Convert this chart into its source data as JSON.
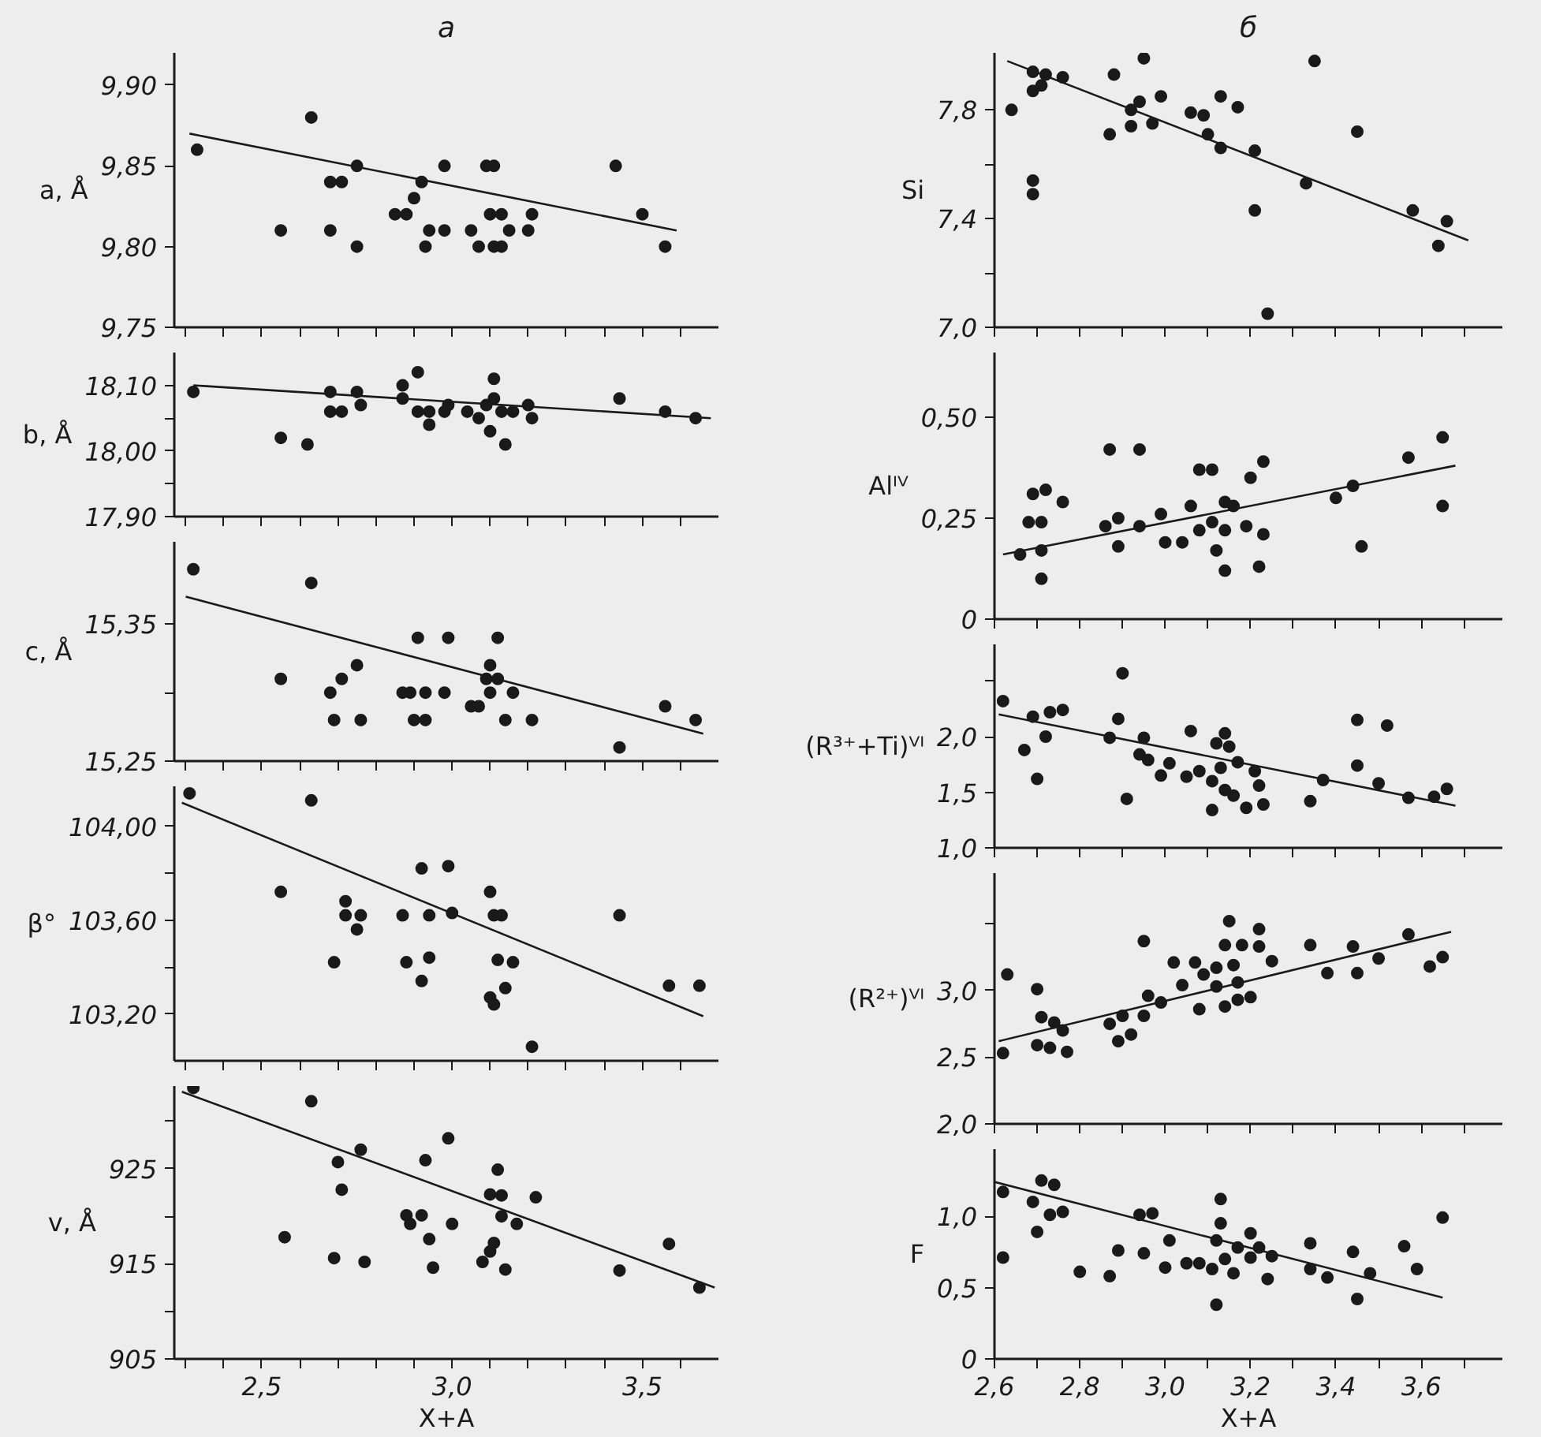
{
  "chart_data": [
    {
      "type": "scatter",
      "title": "а",
      "ylabel": "a, Å",
      "marker": "circle",
      "grid": false,
      "tick_labels": "y",
      "xlim": [
        2.27,
        3.7
      ],
      "ylim": [
        9.75,
        9.92
      ],
      "xticks": [
        {
          "value": 2.3,
          "label": null
        },
        {
          "value": 2.4,
          "label": null
        },
        {
          "value": 2.5,
          "label": null
        },
        {
          "value": 2.6,
          "label": null
        },
        {
          "value": 2.7,
          "label": null
        },
        {
          "value": 2.8,
          "label": null
        },
        {
          "value": 2.9,
          "label": null
        },
        {
          "value": 3.0,
          "label": null
        },
        {
          "value": 3.1,
          "label": null
        },
        {
          "value": 3.2,
          "label": null
        },
        {
          "value": 3.3,
          "label": null
        },
        {
          "value": 3.4,
          "label": null
        },
        {
          "value": 3.5,
          "label": null
        },
        {
          "value": 3.6,
          "label": null
        }
      ],
      "yticks": [
        {
          "value": 9.75,
          "label": "9,75"
        },
        {
          "value": 9.8,
          "label": "9,80"
        },
        {
          "value": 9.85,
          "label": "9,85"
        },
        {
          "value": 9.9,
          "label": "9,90"
        }
      ],
      "series": [
        {
          "type": "scatter",
          "color": "#1a1a1a",
          "x": [
            2.33,
            2.55,
            2.63,
            2.68,
            2.71,
            2.68,
            2.75,
            2.75,
            2.85,
            2.88,
            2.9,
            2.92,
            2.93,
            2.94,
            2.98,
            2.98,
            3.05,
            3.07,
            3.09,
            3.11,
            3.1,
            3.13,
            3.11,
            3.13,
            3.15,
            3.2,
            3.21,
            3.43,
            3.5,
            3.56
          ],
          "values": [
            9.86,
            9.81,
            9.88,
            9.84,
            9.84,
            9.81,
            9.85,
            9.8,
            9.82,
            9.82,
            9.83,
            9.84,
            9.8,
            9.81,
            9.85,
            9.81,
            9.81,
            9.8,
            9.85,
            9.85,
            9.82,
            9.82,
            9.8,
            9.8,
            9.81,
            9.81,
            9.82,
            9.85,
            9.82,
            9.8
          ]
        },
        {
          "type": "line",
          "marker": "none",
          "color": "#1a1a1a",
          "x": [
            2.31,
            3.59
          ],
          "values": [
            9.87,
            9.81
          ]
        }
      ]
    },
    {
      "type": "scatter",
      "ylabel": "b, Å",
      "marker": "circle",
      "grid": false,
      "tick_labels": "y",
      "xlim": [
        2.27,
        3.7
      ],
      "ylim": [
        17.9,
        18.15
      ],
      "xticks": [
        {
          "value": 2.3,
          "label": null
        },
        {
          "value": 2.4,
          "label": null
        },
        {
          "value": 2.5,
          "label": null
        },
        {
          "value": 2.6,
          "label": null
        },
        {
          "value": 2.7,
          "label": null
        },
        {
          "value": 2.8,
          "label": null
        },
        {
          "value": 2.9,
          "label": null
        },
        {
          "value": 3.0,
          "label": null
        },
        {
          "value": 3.1,
          "label": null
        },
        {
          "value": 3.2,
          "label": null
        },
        {
          "value": 3.3,
          "label": null
        },
        {
          "value": 3.4,
          "label": null
        },
        {
          "value": 3.5,
          "label": null
        },
        {
          "value": 3.6,
          "label": null
        }
      ],
      "yticks": [
        {
          "value": 17.9,
          "label": "17,90"
        },
        {
          "value": 17.95,
          "label": null
        },
        {
          "value": 18.0,
          "label": "18,00"
        },
        {
          "value": 18.05,
          "label": null
        },
        {
          "value": 18.1,
          "label": "18,10"
        }
      ],
      "series": [
        {
          "type": "scatter",
          "color": "#1a1a1a",
          "x": [
            2.32,
            2.68,
            2.75,
            2.76,
            2.68,
            2.71,
            2.87,
            2.87,
            2.91,
            2.91,
            2.94,
            2.98,
            2.99,
            3.04,
            3.07,
            3.09,
            3.11,
            3.11,
            3.13,
            3.16,
            3.2,
            3.21,
            3.44,
            3.56,
            3.64,
            2.94,
            2.55,
            2.62,
            3.1,
            3.14
          ],
          "values": [
            18.09,
            18.09,
            18.09,
            18.07,
            18.06,
            18.06,
            18.1,
            18.08,
            18.12,
            18.06,
            18.06,
            18.06,
            18.07,
            18.06,
            18.05,
            18.07,
            18.11,
            18.08,
            18.06,
            18.06,
            18.07,
            18.05,
            18.08,
            18.06,
            18.05,
            18.04,
            18.02,
            18.01,
            18.03,
            18.01
          ]
        },
        {
          "type": "line",
          "marker": "none",
          "color": "#1a1a1a",
          "x": [
            2.32,
            3.68
          ],
          "values": [
            18.1,
            18.05
          ]
        }
      ]
    },
    {
      "type": "scatter",
      "ylabel": "c, Å",
      "marker": "circle",
      "grid": false,
      "tick_labels": "y",
      "xlim": [
        2.27,
        3.7
      ],
      "ylim": [
        15.25,
        15.41
      ],
      "xticks": [
        {
          "value": 2.3,
          "label": null
        },
        {
          "value": 2.4,
          "label": null
        },
        {
          "value": 2.5,
          "label": null
        },
        {
          "value": 2.6,
          "label": null
        },
        {
          "value": 2.7,
          "label": null
        },
        {
          "value": 2.8,
          "label": null
        },
        {
          "value": 2.9,
          "label": null
        },
        {
          "value": 3.0,
          "label": null
        },
        {
          "value": 3.1,
          "label": null
        },
        {
          "value": 3.2,
          "label": null
        },
        {
          "value": 3.3,
          "label": null
        },
        {
          "value": 3.4,
          "label": null
        },
        {
          "value": 3.5,
          "label": null
        },
        {
          "value": 3.6,
          "label": null
        }
      ],
      "yticks": [
        {
          "value": 15.25,
          "label": "15,25"
        },
        {
          "value": 15.3,
          "label": null
        },
        {
          "value": 15.35,
          "label": "15,35"
        }
      ],
      "series": [
        {
          "type": "scatter",
          "color": "#1a1a1a",
          "x": [
            2.32,
            2.63,
            2.55,
            2.68,
            2.69,
            2.71,
            2.75,
            2.76,
            2.87,
            2.89,
            2.9,
            2.91,
            2.93,
            2.93,
            2.98,
            2.99,
            3.05,
            3.07,
            3.1,
            3.09,
            3.1,
            3.12,
            3.12,
            3.14,
            3.16,
            3.21,
            3.44,
            3.56,
            3.64
          ],
          "values": [
            15.39,
            15.38,
            15.31,
            15.3,
            15.28,
            15.31,
            15.32,
            15.28,
            15.3,
            15.3,
            15.28,
            15.34,
            15.3,
            15.28,
            15.3,
            15.34,
            15.29,
            15.29,
            15.32,
            15.31,
            15.3,
            15.31,
            15.34,
            15.28,
            15.3,
            15.28,
            15.26,
            15.29,
            15.28
          ]
        },
        {
          "type": "line",
          "marker": "none",
          "color": "#1a1a1a",
          "x": [
            2.3,
            3.66
          ],
          "values": [
            15.37,
            15.27
          ]
        }
      ]
    },
    {
      "type": "scatter",
      "ylabel": "β°",
      "marker": "circle",
      "grid": false,
      "tick_labels": "y",
      "xlim": [
        2.27,
        3.7
      ],
      "ylim": [
        103.0,
        104.17
      ],
      "xticks": [
        {
          "value": 2.3,
          "label": null
        },
        {
          "value": 2.4,
          "label": null
        },
        {
          "value": 2.5,
          "label": null
        },
        {
          "value": 2.6,
          "label": null
        },
        {
          "value": 2.7,
          "label": null
        },
        {
          "value": 2.8,
          "label": null
        },
        {
          "value": 2.9,
          "label": null
        },
        {
          "value": 3.0,
          "label": null
        },
        {
          "value": 3.1,
          "label": null
        },
        {
          "value": 3.2,
          "label": null
        },
        {
          "value": 3.3,
          "label": null
        },
        {
          "value": 3.4,
          "label": null
        },
        {
          "value": 3.5,
          "label": null
        },
        {
          "value": 3.6,
          "label": null
        }
      ],
      "yticks": [
        {
          "value": 103.2,
          "label": "103,20"
        },
        {
          "value": 103.4,
          "label": null
        },
        {
          "value": 103.6,
          "label": "103,60"
        },
        {
          "value": 103.8,
          "label": null
        },
        {
          "value": 104.0,
          "label": "104,00"
        }
      ],
      "series": [
        {
          "type": "scatter",
          "color": "#1a1a1a",
          "x": [
            2.31,
            2.63,
            2.55,
            2.72,
            2.92,
            2.99,
            3.1,
            2.72,
            2.76,
            2.75,
            2.69,
            2.87,
            2.94,
            3.0,
            3.11,
            3.13,
            3.44,
            2.88,
            2.94,
            2.92,
            3.1,
            3.11,
            3.12,
            3.14,
            3.16,
            3.21,
            3.57,
            3.65
          ],
          "values": [
            104.14,
            104.11,
            103.72,
            103.68,
            103.82,
            103.83,
            103.72,
            103.62,
            103.62,
            103.56,
            103.42,
            103.62,
            103.62,
            103.63,
            103.62,
            103.62,
            103.62,
            103.42,
            103.44,
            103.34,
            103.27,
            103.24,
            103.43,
            103.31,
            103.42,
            103.06,
            103.32,
            103.32
          ]
        },
        {
          "type": "line",
          "marker": "none",
          "color": "#1a1a1a",
          "x": [
            2.29,
            3.66
          ],
          "values": [
            104.1,
            103.19
          ]
        }
      ]
    },
    {
      "type": "scatter",
      "ylabel": "v, Å",
      "xlabel": "X+A",
      "marker": "circle",
      "grid": false,
      "xlim": [
        2.27,
        3.7
      ],
      "ylim": [
        905,
        933.7
      ],
      "xticks": [
        {
          "value": 2.3,
          "label": null
        },
        {
          "value": 2.4,
          "label": null
        },
        {
          "value": 2.5,
          "label": "2,5"
        },
        {
          "value": 2.6,
          "label": null
        },
        {
          "value": 2.7,
          "label": null
        },
        {
          "value": 2.8,
          "label": null
        },
        {
          "value": 2.9,
          "label": null
        },
        {
          "value": 3.0,
          "label": "3,0"
        },
        {
          "value": 3.1,
          "label": null
        },
        {
          "value": 3.2,
          "label": null
        },
        {
          "value": 3.3,
          "label": null
        },
        {
          "value": 3.4,
          "label": null
        },
        {
          "value": 3.5,
          "label": "3,5"
        },
        {
          "value": 3.6,
          "label": null
        }
      ],
      "yticks": [
        905,
        {
          "value": 910,
          "label": null
        },
        915,
        {
          "value": 920,
          "label": null
        },
        925,
        {
          "value": 930,
          "label": null
        }
      ],
      "series": [
        {
          "type": "scatter",
          "color": "#1a1a1a",
          "x": [
            2.32,
            2.63,
            2.7,
            2.76,
            2.71,
            2.56,
            2.69,
            2.77,
            2.88,
            2.89,
            2.92,
            2.93,
            2.94,
            2.95,
            2.99,
            3.0,
            3.08,
            3.1,
            3.11,
            3.1,
            3.13,
            3.12,
            3.13,
            3.17,
            3.14,
            3.22,
            3.44,
            3.57,
            3.65
          ],
          "values": [
            933.5,
            932.1,
            925.7,
            927.0,
            922.8,
            917.8,
            915.6,
            915.2,
            920.1,
            919.2,
            920.1,
            925.9,
            917.6,
            914.6,
            928.2,
            919.2,
            915.2,
            916.3,
            917.2,
            922.3,
            922.2,
            924.9,
            920.0,
            919.2,
            914.4,
            922.0,
            914.3,
            917.1,
            912.5
          ]
        },
        {
          "type": "line",
          "marker": "none",
          "color": "#1a1a1a",
          "x": [
            2.29,
            3.69
          ],
          "values": [
            933.1,
            912.5
          ]
        }
      ]
    },
    {
      "type": "scatter",
      "title": "б",
      "ylabel": "Si",
      "marker": "circle",
      "grid": false,
      "tick_labels": "y",
      "xlim": [
        2.6,
        3.79
      ],
      "ylim": [
        7.0,
        8.01
      ],
      "xticks": [
        {
          "value": 2.6,
          "label": null
        },
        {
          "value": 2.7,
          "label": null
        },
        {
          "value": 2.8,
          "label": null
        },
        {
          "value": 2.9,
          "label": null
        },
        {
          "value": 3.0,
          "label": null
        },
        {
          "value": 3.1,
          "label": null
        },
        {
          "value": 3.2,
          "label": null
        },
        {
          "value": 3.3,
          "label": null
        },
        {
          "value": 3.4,
          "label": null
        },
        {
          "value": 3.5,
          "label": null
        },
        {
          "value": 3.6,
          "label": null
        },
        {
          "value": 3.7,
          "label": null
        }
      ],
      "yticks": [
        {
          "value": 7.0,
          "label": "7,0"
        },
        {
          "value": 7.2,
          "label": null
        },
        {
          "value": 7.4,
          "label": "7,4"
        },
        {
          "value": 7.6,
          "label": null
        },
        {
          "value": 7.8,
          "label": "7,8"
        }
      ],
      "series": [
        {
          "type": "scatter",
          "color": "#1a1a1a",
          "x": [
            2.64,
            2.69,
            2.69,
            2.71,
            2.72,
            2.76,
            2.69,
            2.69,
            2.87,
            2.88,
            2.92,
            2.92,
            2.94,
            2.95,
            2.97,
            2.99,
            3.06,
            3.09,
            3.1,
            3.13,
            3.13,
            3.17,
            3.21,
            3.21,
            3.24,
            3.33,
            3.35,
            3.45,
            3.58,
            3.64,
            3.66
          ],
          "values": [
            7.8,
            7.87,
            7.94,
            7.89,
            7.93,
            7.92,
            7.54,
            7.49,
            7.71,
            7.93,
            7.8,
            7.74,
            7.83,
            7.99,
            7.75,
            7.85,
            7.79,
            7.78,
            7.71,
            7.85,
            7.66,
            7.81,
            7.65,
            7.43,
            7.05,
            7.53,
            7.98,
            7.72,
            7.43,
            7.3,
            7.39
          ]
        },
        {
          "type": "line",
          "marker": "none",
          "color": "#1a1a1a",
          "x": [
            2.63,
            3.71
          ],
          "values": [
            7.98,
            7.32
          ]
        }
      ]
    },
    {
      "type": "scatter",
      "ylabel": "Alᴵⱽ",
      "marker": "circle",
      "grid": false,
      "tick_labels": "y",
      "xlim": [
        2.6,
        3.79
      ],
      "ylim": [
        0,
        0.66
      ],
      "xticks": [
        {
          "value": 2.6,
          "label": null
        },
        {
          "value": 2.7,
          "label": null
        },
        {
          "value": 2.8,
          "label": null
        },
        {
          "value": 2.9,
          "label": null
        },
        {
          "value": 3.0,
          "label": null
        },
        {
          "value": 3.1,
          "label": null
        },
        {
          "value": 3.2,
          "label": null
        },
        {
          "value": 3.3,
          "label": null
        },
        {
          "value": 3.4,
          "label": null
        },
        {
          "value": 3.5,
          "label": null
        },
        {
          "value": 3.6,
          "label": null
        },
        {
          "value": 3.7,
          "label": null
        }
      ],
      "yticks": [
        0,
        {
          "value": 0.25,
          "label": "0,25"
        },
        {
          "value": 0.5,
          "label": "0,50"
        }
      ],
      "series": [
        {
          "type": "scatter",
          "color": "#1a1a1a",
          "x": [
            2.66,
            2.68,
            2.69,
            2.71,
            2.71,
            2.72,
            2.71,
            2.76,
            2.86,
            2.87,
            2.89,
            2.89,
            2.94,
            2.94,
            2.99,
            3.0,
            3.04,
            3.06,
            3.08,
            3.08,
            3.11,
            3.11,
            3.12,
            3.14,
            3.14,
            3.14,
            3.16,
            3.19,
            3.2,
            3.22,
            3.23,
            3.23,
            3.4,
            3.44,
            3.46,
            3.57,
            3.65,
            3.65
          ],
          "values": [
            0.16,
            0.24,
            0.31,
            0.17,
            0.24,
            0.32,
            0.1,
            0.29,
            0.23,
            0.42,
            0.25,
            0.18,
            0.42,
            0.23,
            0.26,
            0.19,
            0.19,
            0.28,
            0.37,
            0.22,
            0.37,
            0.24,
            0.17,
            0.29,
            0.22,
            0.12,
            0.28,
            0.23,
            0.35,
            0.13,
            0.21,
            0.39,
            0.3,
            0.33,
            0.18,
            0.4,
            0.28,
            0.45
          ]
        },
        {
          "type": "line",
          "marker": "none",
          "color": "#1a1a1a",
          "x": [
            2.62,
            3.68
          ],
          "values": [
            0.16,
            0.38
          ]
        }
      ]
    },
    {
      "type": "scatter",
      "ylabel": "(R³⁺+Ti)ⱽᴵ",
      "marker": "circle",
      "grid": false,
      "tick_labels": "y",
      "xlim": [
        2.6,
        3.79
      ],
      "ylim": [
        1.0,
        2.83
      ],
      "xticks": [
        {
          "value": 2.6,
          "label": null
        },
        {
          "value": 2.7,
          "label": null
        },
        {
          "value": 2.8,
          "label": null
        },
        {
          "value": 2.9,
          "label": null
        },
        {
          "value": 3.0,
          "label": null
        },
        {
          "value": 3.1,
          "label": null
        },
        {
          "value": 3.2,
          "label": null
        },
        {
          "value": 3.3,
          "label": null
        },
        {
          "value": 3.4,
          "label": null
        },
        {
          "value": 3.5,
          "label": null
        },
        {
          "value": 3.6,
          "label": null
        },
        {
          "value": 3.7,
          "label": null
        }
      ],
      "yticks": [
        {
          "value": 1.0,
          "label": "1,0"
        },
        {
          "value": 1.5,
          "label": "1,5"
        },
        {
          "value": 2.0,
          "label": "2,0"
        },
        {
          "value": 2.5,
          "label": null
        }
      ],
      "series": [
        {
          "type": "scatter",
          "color": "#1a1a1a",
          "x": [
            2.62,
            2.67,
            2.69,
            2.7,
            2.72,
            2.73,
            2.76,
            2.87,
            2.89,
            2.9,
            2.91,
            2.94,
            2.95,
            2.96,
            2.99,
            3.01,
            3.05,
            3.06,
            3.08,
            3.11,
            3.12,
            3.11,
            3.14,
            3.13,
            3.14,
            3.15,
            3.16,
            3.17,
            3.19,
            3.21,
            3.22,
            3.23,
            3.34,
            3.37,
            3.45,
            3.45,
            3.5,
            3.52,
            3.57,
            3.63,
            3.66
          ],
          "values": [
            2.32,
            1.88,
            2.18,
            1.62,
            2.0,
            2.22,
            2.24,
            1.99,
            2.16,
            2.57,
            1.44,
            1.84,
            1.99,
            1.79,
            1.65,
            1.76,
            1.64,
            2.05,
            1.69,
            1.6,
            1.94,
            1.34,
            2.03,
            1.72,
            1.52,
            1.91,
            1.47,
            1.77,
            1.36,
            1.69,
            1.56,
            1.39,
            1.42,
            1.61,
            1.74,
            2.15,
            1.58,
            2.1,
            1.45,
            1.46,
            1.53
          ]
        },
        {
          "type": "line",
          "marker": "none",
          "color": "#1a1a1a",
          "x": [
            2.61,
            3.68
          ],
          "values": [
            2.2,
            1.38
          ]
        }
      ]
    },
    {
      "type": "scatter",
      "ylabel": "(R²⁺)ⱽᴵ",
      "marker": "circle",
      "grid": false,
      "tick_labels": "y",
      "xlim": [
        2.6,
        3.79
      ],
      "ylim": [
        2.0,
        3.88
      ],
      "xticks": [
        {
          "value": 2.6,
          "label": null
        },
        {
          "value": 2.7,
          "label": null
        },
        {
          "value": 2.8,
          "label": null
        },
        {
          "value": 2.9,
          "label": null
        },
        {
          "value": 3.0,
          "label": null
        },
        {
          "value": 3.1,
          "label": null
        },
        {
          "value": 3.2,
          "label": null
        },
        {
          "value": 3.3,
          "label": null
        },
        {
          "value": 3.4,
          "label": null
        },
        {
          "value": 3.5,
          "label": null
        },
        {
          "value": 3.6,
          "label": null
        },
        {
          "value": 3.7,
          "label": null
        }
      ],
      "yticks": [
        {
          "value": 2.0,
          "label": "2,0"
        },
        {
          "value": 2.5,
          "label": "2,5"
        },
        {
          "value": 3.0,
          "label": "3,0"
        },
        {
          "value": 3.5,
          "label": null
        }
      ],
      "series": [
        {
          "type": "scatter",
          "color": "#1a1a1a",
          "x": [
            2.62,
            2.63,
            2.7,
            2.7,
            2.71,
            2.73,
            2.74,
            2.76,
            2.77,
            2.87,
            2.89,
            2.9,
            2.92,
            2.95,
            2.95,
            2.96,
            2.99,
            3.02,
            3.04,
            3.07,
            3.08,
            3.09,
            3.12,
            3.12,
            3.14,
            3.14,
            3.15,
            3.16,
            3.17,
            3.17,
            3.18,
            3.2,
            3.22,
            3.22,
            3.25,
            3.34,
            3.38,
            3.44,
            3.45,
            3.5,
            3.57,
            3.62,
            3.65
          ],
          "values": [
            2.53,
            3.12,
            2.59,
            3.01,
            2.8,
            2.57,
            2.76,
            2.7,
            2.54,
            2.75,
            2.62,
            2.81,
            2.67,
            2.81,
            3.37,
            2.96,
            2.91,
            3.21,
            3.04,
            3.21,
            2.86,
            3.12,
            3.17,
            3.03,
            2.88,
            3.34,
            3.52,
            3.19,
            3.06,
            2.93,
            3.34,
            2.95,
            3.33,
            3.46,
            3.22,
            3.34,
            3.13,
            3.33,
            3.13,
            3.24,
            3.42,
            3.18,
            3.25
          ]
        },
        {
          "type": "line",
          "marker": "none",
          "color": "#1a1a1a",
          "x": [
            2.61,
            3.67
          ],
          "values": [
            2.62,
            3.44
          ]
        }
      ]
    },
    {
      "type": "scatter",
      "ylabel": "F",
      "xlabel": "X+A",
      "marker": "circle",
      "grid": false,
      "xlim": [
        2.6,
        3.79
      ],
      "ylim": [
        0,
        1.47
      ],
      "xticks": [
        {
          "value": 2.6,
          "label": "2,6"
        },
        {
          "value": 2.7,
          "label": null
        },
        {
          "value": 2.8,
          "label": "2,8"
        },
        {
          "value": 2.9,
          "label": null
        },
        {
          "value": 3.0,
          "label": "3,0"
        },
        {
          "value": 3.1,
          "label": null
        },
        {
          "value": 3.2,
          "label": "3,2"
        },
        {
          "value": 3.3,
          "label": null
        },
        {
          "value": 3.4,
          "label": "3,4"
        },
        {
          "value": 3.5,
          "label": null
        },
        {
          "value": 3.6,
          "label": "3,6"
        },
        {
          "value": 3.7,
          "label": null
        }
      ],
      "yticks": [
        0,
        {
          "value": 0.5,
          "label": "0,5"
        },
        {
          "value": 1.0,
          "label": "1,0"
        }
      ],
      "series": [
        {
          "type": "scatter",
          "color": "#1a1a1a",
          "x": [
            2.62,
            2.62,
            2.69,
            2.7,
            2.71,
            2.73,
            2.74,
            2.76,
            2.8,
            2.87,
            2.89,
            2.94,
            2.95,
            2.97,
            3.0,
            3.01,
            3.05,
            3.08,
            3.11,
            3.12,
            3.12,
            3.13,
            3.13,
            3.14,
            3.16,
            3.17,
            3.2,
            3.2,
            3.22,
            3.24,
            3.25,
            3.34,
            3.34,
            3.38,
            3.44,
            3.45,
            3.48,
            3.56,
            3.59,
            3.65
          ],
          "values": [
            1.17,
            0.71,
            1.1,
            0.89,
            1.25,
            1.01,
            1.22,
            1.03,
            0.61,
            0.58,
            0.76,
            1.01,
            0.74,
            1.02,
            0.64,
            0.83,
            0.67,
            0.67,
            0.63,
            0.83,
            0.38,
            1.12,
            0.95,
            0.7,
            0.6,
            0.78,
            0.88,
            0.71,
            0.78,
            0.56,
            0.72,
            0.81,
            0.63,
            0.57,
            0.75,
            0.42,
            0.6,
            0.79,
            0.63,
            0.99
          ]
        },
        {
          "type": "line",
          "marker": "none",
          "color": "#1a1a1a",
          "x": [
            2.6,
            3.65
          ],
          "values": [
            1.24,
            0.43
          ]
        }
      ]
    }
  ]
}
